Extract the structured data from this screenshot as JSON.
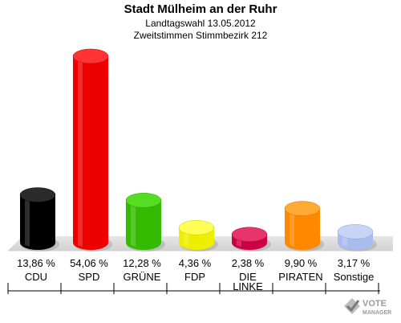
{
  "title": "Stadt Mülheim an der Ruhr",
  "subtitle1": "Landtagswahl 13.05.2012",
  "subtitle2": "Zweitstimmen Stimmbezirk 212",
  "logo": {
    "line1": "VOTE",
    "line2": "MANAGER",
    "icon": "ballot-check-icon"
  },
  "chart_data": {
    "type": "bar",
    "title": "Stadt Mülheim an der Ruhr",
    "subtitle": "Landtagswahl 13.05.2012 – Zweitstimmen Stimmbezirk 212",
    "xlabel": "",
    "ylabel": "",
    "ylim": [
      0,
      54.06
    ],
    "grid": false,
    "legend": "none",
    "unit": "%",
    "categories": [
      {
        "label": [
          "CDU"
        ],
        "value": 13.86,
        "text": "13,86 %",
        "color": "#000000",
        "top": "#2b2b2b"
      },
      {
        "label": [
          "SPD"
        ],
        "value": 54.06,
        "text": "54,06 %",
        "color": "#ee0000",
        "top": "#ff3333"
      },
      {
        "label": [
          "GRÜNE"
        ],
        "value": 12.28,
        "text": "12,28 %",
        "color": "#33bb00",
        "top": "#55dd22"
      },
      {
        "label": [
          "FDP"
        ],
        "value": 4.36,
        "text": "4,36 %",
        "color": "#eeee00",
        "top": "#ffff55"
      },
      {
        "label": [
          "DIE",
          "LINKE"
        ],
        "value": 2.38,
        "text": "2,38 %",
        "color": "#cc0044",
        "top": "#e8336b"
      },
      {
        "label": [
          "PIRATEN"
        ],
        "value": 9.9,
        "text": "9,90 %",
        "color": "#ff8800",
        "top": "#ffaa33"
      },
      {
        "label": [
          "Sonstige"
        ],
        "value": 3.17,
        "text": "3,17 %",
        "color": "#aabbee",
        "top": "#c8d4f6"
      }
    ]
  }
}
